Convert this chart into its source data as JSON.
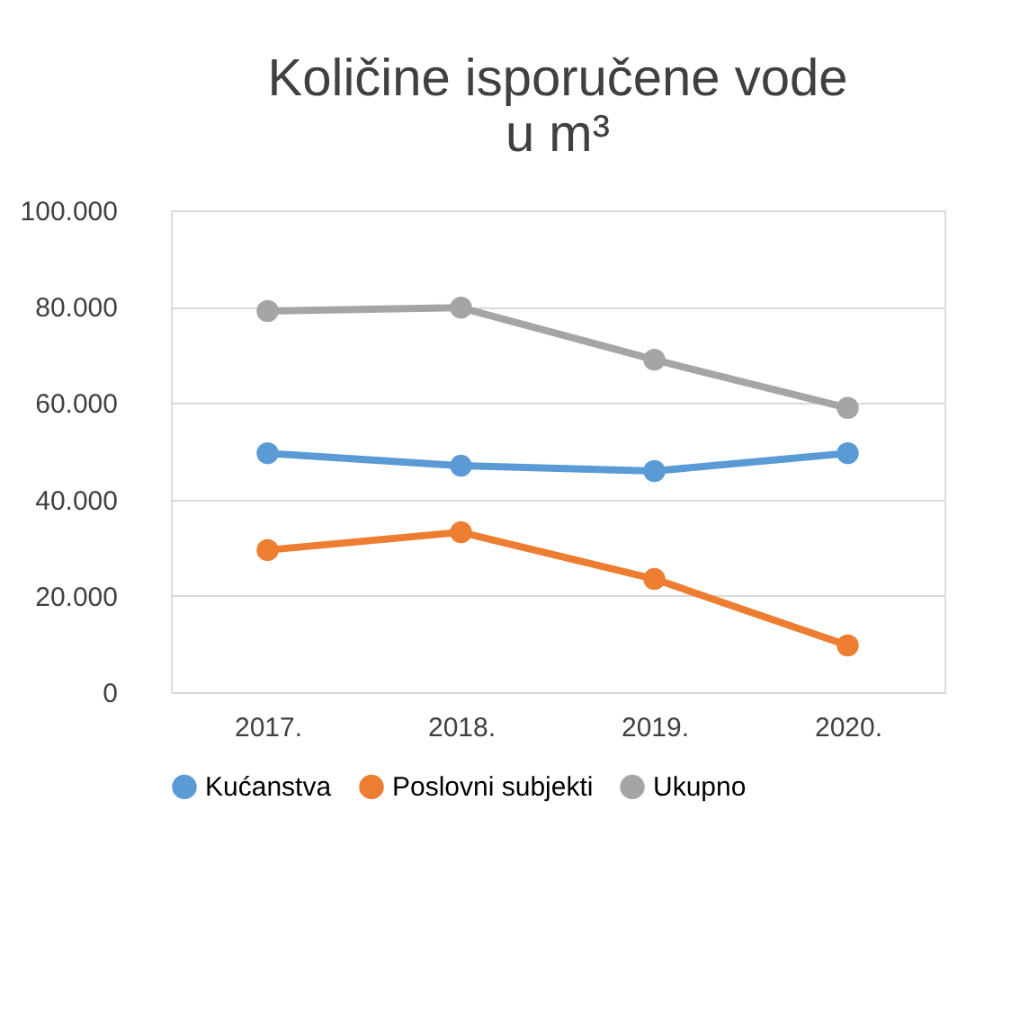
{
  "chart_data": {
    "type": "line",
    "title": [
      "Količine isporučene vode",
      "u m³"
    ],
    "categories": [
      "2017.",
      "2018.",
      "2019.",
      "2020."
    ],
    "series": [
      {
        "name": "Kućanstva",
        "color": "#5b9bd5",
        "values": [
          49600,
          47000,
          45900,
          49600
        ]
      },
      {
        "name": "Poslovni subjekti",
        "color": "#ed7d31",
        "values": [
          29500,
          33200,
          23500,
          9700
        ]
      },
      {
        "name": "Ukupno",
        "color": "#a5a5a5",
        "values": [
          79100,
          79800,
          69000,
          59000
        ]
      }
    ],
    "ylim": [
      0,
      100000
    ],
    "yticks": [
      {
        "value": 0,
        "label": "0"
      },
      {
        "value": 20000,
        "label": "20.000"
      },
      {
        "value": 40000,
        "label": "40.000"
      },
      {
        "value": 60000,
        "label": "60.000"
      },
      {
        "value": 80000,
        "label": "80.000"
      },
      {
        "value": 100000,
        "label": "100.000"
      }
    ],
    "grid": "y",
    "legend": "bottom",
    "marker": "circle",
    "line_style": "solid"
  }
}
